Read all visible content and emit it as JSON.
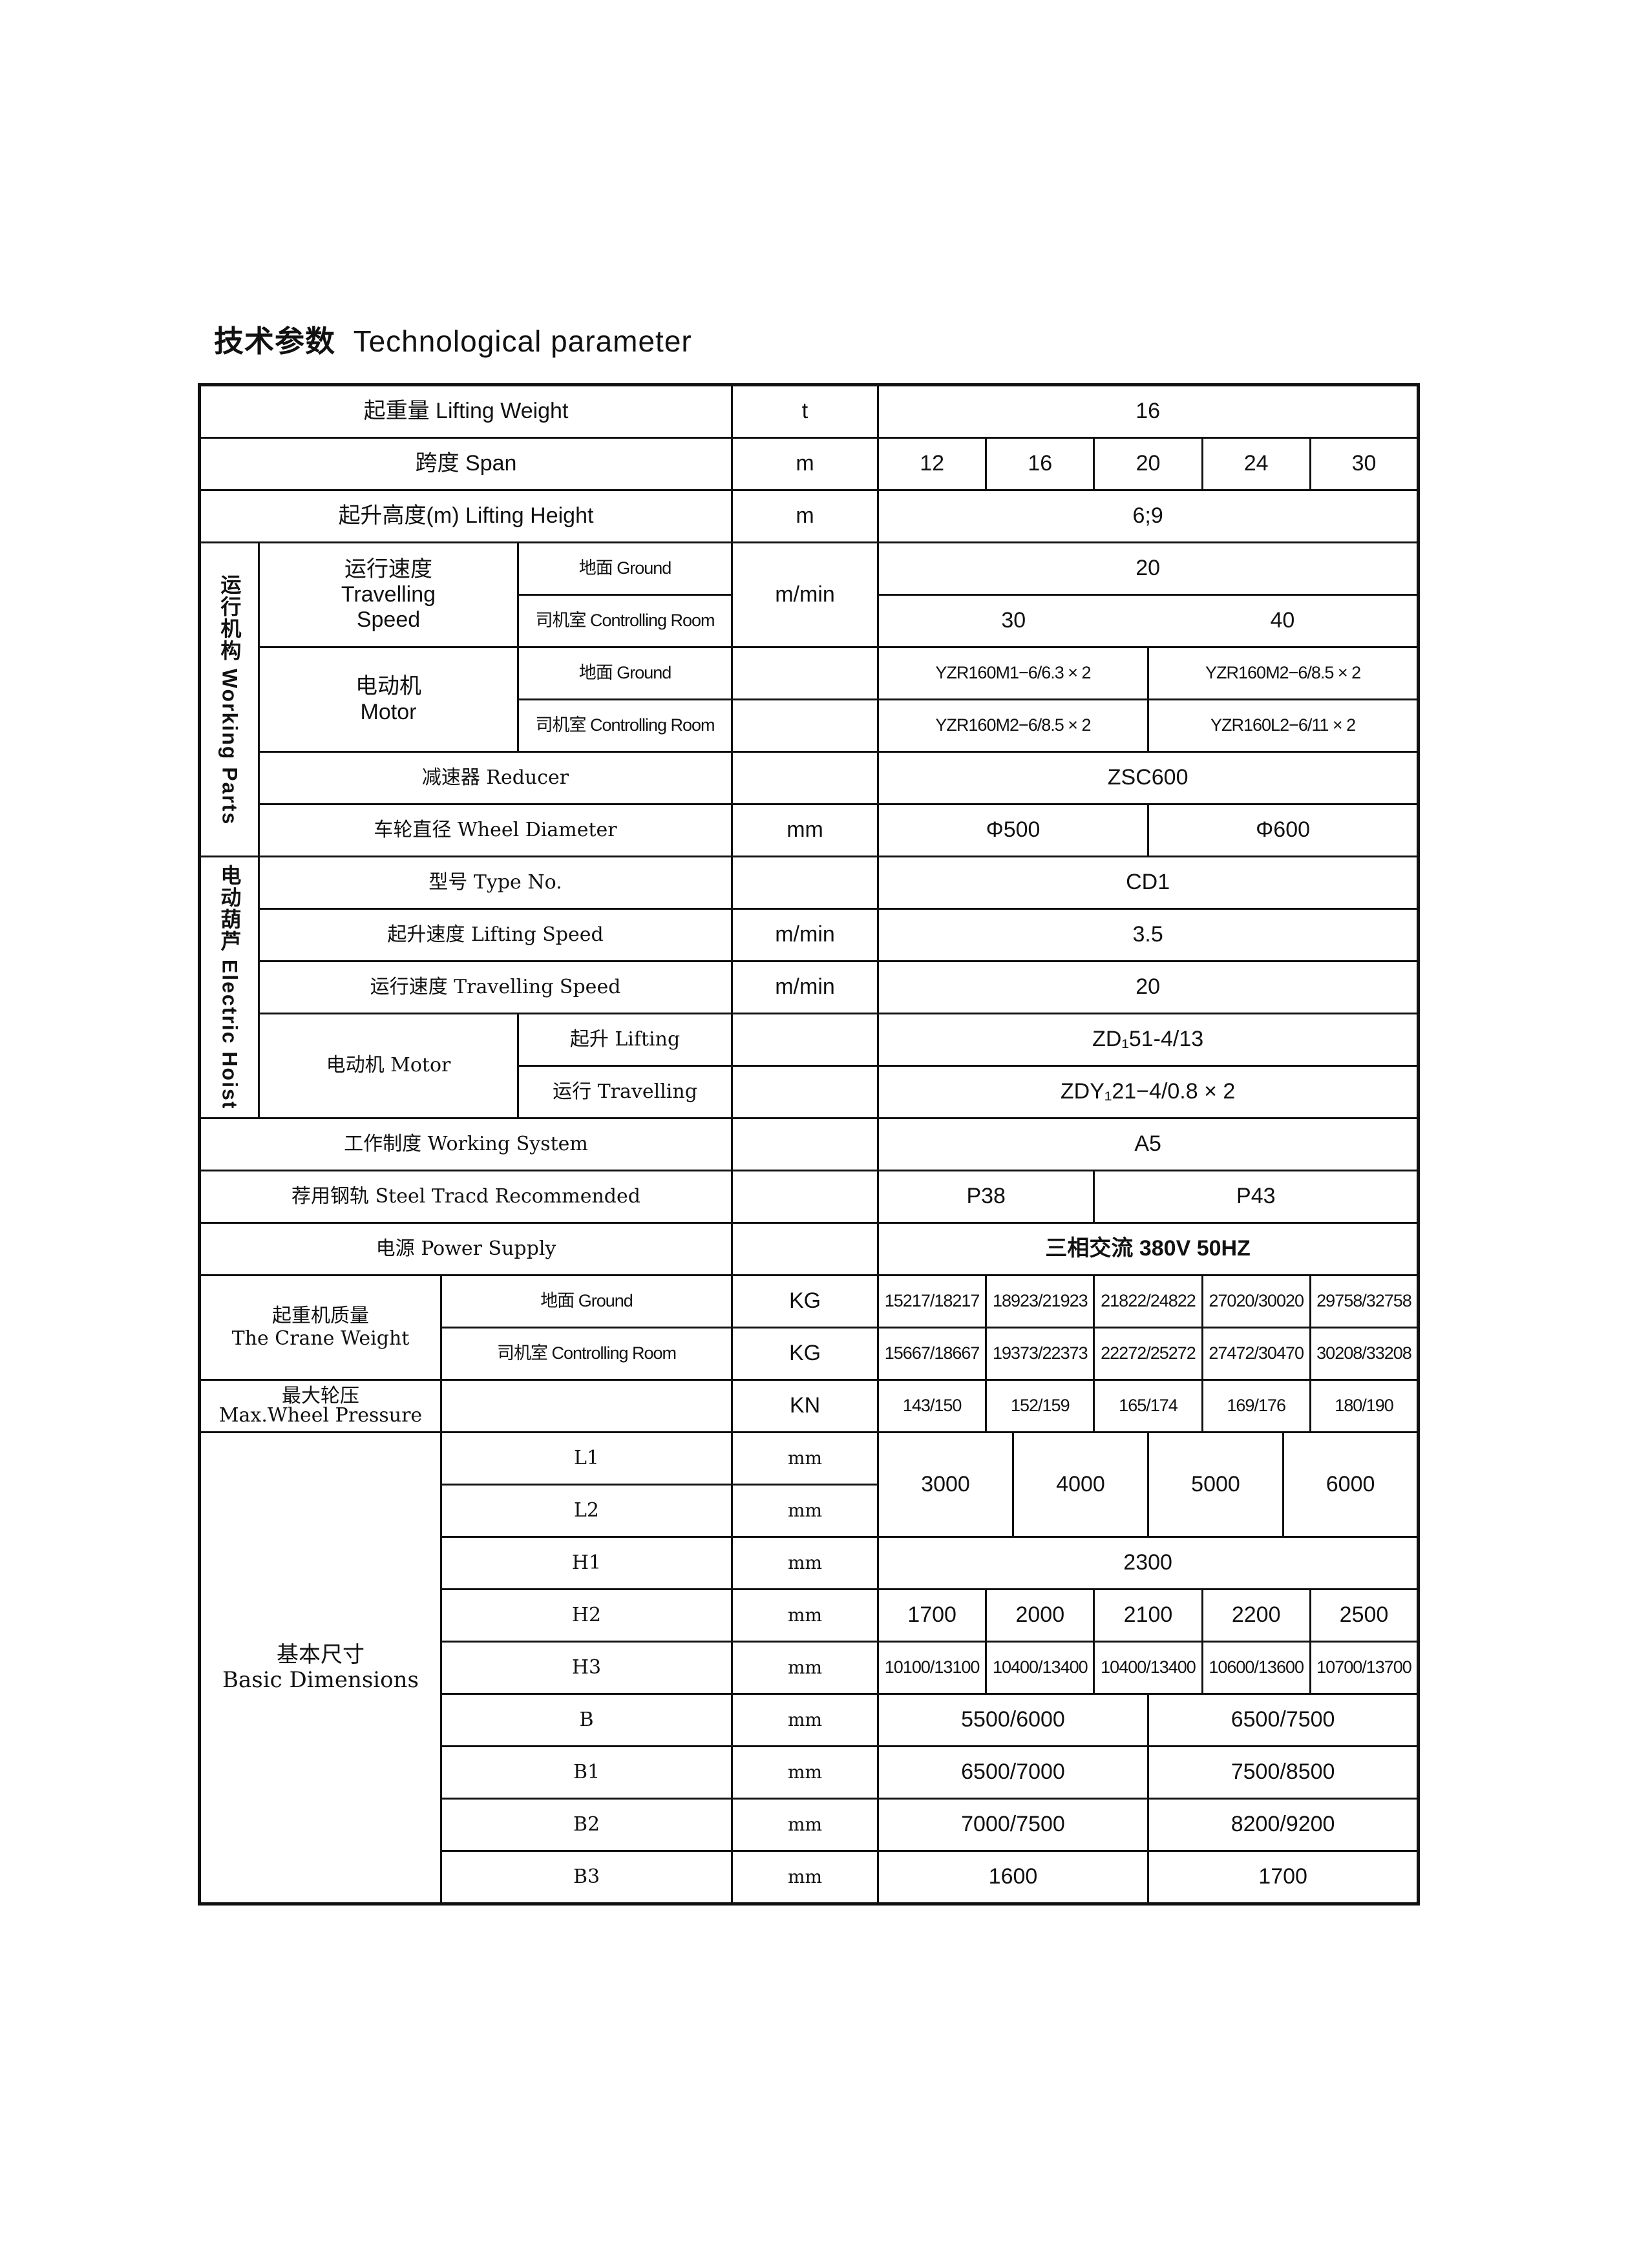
{
  "title": {
    "zh": "技术参数",
    "en": "Technological  parameter"
  },
  "lifting_weight": {
    "label": "起重量 Lifting Weight",
    "unit": "t",
    "value": "16"
  },
  "span": {
    "label": "跨度   Span",
    "unit": "m",
    "values": [
      "12",
      "16",
      "20",
      "24",
      "30"
    ]
  },
  "lifting_height": {
    "label": "起升高度(m) Lifting Height",
    "unit": "m",
    "value": "6;9"
  },
  "working_parts": {
    "section": "运行机构 Working Parts",
    "travelling_speed": {
      "label_zh": "运行速度",
      "label_en1": "Travelling",
      "label_en2": "Speed",
      "ground": "地面 Ground",
      "control": "司机室 Controlling Room",
      "unit": "m/min",
      "ground_value": "20",
      "control_values": [
        "30",
        "40"
      ]
    },
    "motor": {
      "label_zh": "电动机",
      "label_en": "Motor",
      "ground": "地面 Ground",
      "control": "司机室 Controlling Room",
      "ground_values": [
        "YZR160M1−6/6.3 × 2",
        "YZR160M2−6/8.5 × 2"
      ],
      "control_values": [
        "YZR160M2−6/8.5 × 2",
        "YZR160L2−6/11 × 2"
      ]
    },
    "reducer": {
      "label": "减速器 Reducer",
      "value": "ZSC600"
    },
    "wheel_diameter": {
      "label": "车轮直径 Wheel Diameter",
      "unit": "mm",
      "values": [
        "Φ500",
        "Φ600"
      ]
    }
  },
  "electric_hoist": {
    "section": "电动葫芦 Electric Hoist",
    "type": {
      "label": "型号 Type No.",
      "value": "CD1"
    },
    "lifting_speed": {
      "label": "起升速度 Lifting Speed",
      "unit": "m/min",
      "value": "3.5"
    },
    "travelling_speed": {
      "label": "运行速度 Travelling Speed",
      "unit": "m/min",
      "value": "20"
    },
    "motor": {
      "label": "电动机 Motor",
      "lifting": "起升 Lifting",
      "travelling": "运行 Travelling",
      "lifting_value": "ZD₁51-4/13",
      "travelling_value": "ZDY₁21−4/0.8 × 2"
    }
  },
  "working_system": {
    "label": "工作制度 Working System",
    "value": "A5"
  },
  "steel_track": {
    "label": "荐用钢轨 Steel Tracd Recommended",
    "values": [
      "P38",
      "P43"
    ]
  },
  "power_supply": {
    "label": "电源 Power Supply",
    "value": "三相交流 380V  50HZ"
  },
  "crane_weight": {
    "label_zh": "起重机质量",
    "label_en": "The Crane Weight",
    "ground": "地面 Ground",
    "control": "司机室 Controlling Room",
    "unit": "KG",
    "ground_values": [
      "15217/18217",
      "18923/21923",
      "21822/24822",
      "27020/30020",
      "29758/32758"
    ],
    "control_values": [
      "15667/18667",
      "19373/22373",
      "22272/25272",
      "27472/30470",
      "30208/33208"
    ]
  },
  "wheel_pressure": {
    "label_zh": "最大轮压",
    "label_en": "Max.Wheel Pressure",
    "unit": "KN",
    "values": [
      "143/150",
      "152/159",
      "165/174",
      "169/176",
      "180/190"
    ]
  },
  "dimensions": {
    "label_zh": "基本尺寸",
    "label_en": "Basic Dimensions",
    "L1": {
      "label": "L1",
      "unit": "mm"
    },
    "L2": {
      "label": "L2",
      "unit": "mm"
    },
    "L_values": [
      "3000",
      "4000",
      "5000",
      "6000"
    ],
    "H1": {
      "label": "H1",
      "unit": "mm",
      "value": "2300"
    },
    "H2": {
      "label": "H2",
      "unit": "mm",
      "values": [
        "1700",
        "2000",
        "2100",
        "2200",
        "2500"
      ]
    },
    "H3": {
      "label": "H3",
      "unit": "mm",
      "values": [
        "10100/13100",
        "10400/13400",
        "10400/13400",
        "10600/13600",
        "10700/13700"
      ]
    },
    "B": {
      "label": "B",
      "unit": "mm",
      "values": [
        "5500/6000",
        "6500/7500"
      ]
    },
    "B1": {
      "label": "B1",
      "unit": "mm",
      "values": [
        "6500/7000",
        "7500/8500"
      ]
    },
    "B2": {
      "label": "B2",
      "unit": "mm",
      "values": [
        "7000/7500",
        "8200/9200"
      ]
    },
    "B3": {
      "label": "B3",
      "unit": "mm",
      "values": [
        "1600",
        "1700"
      ]
    }
  }
}
